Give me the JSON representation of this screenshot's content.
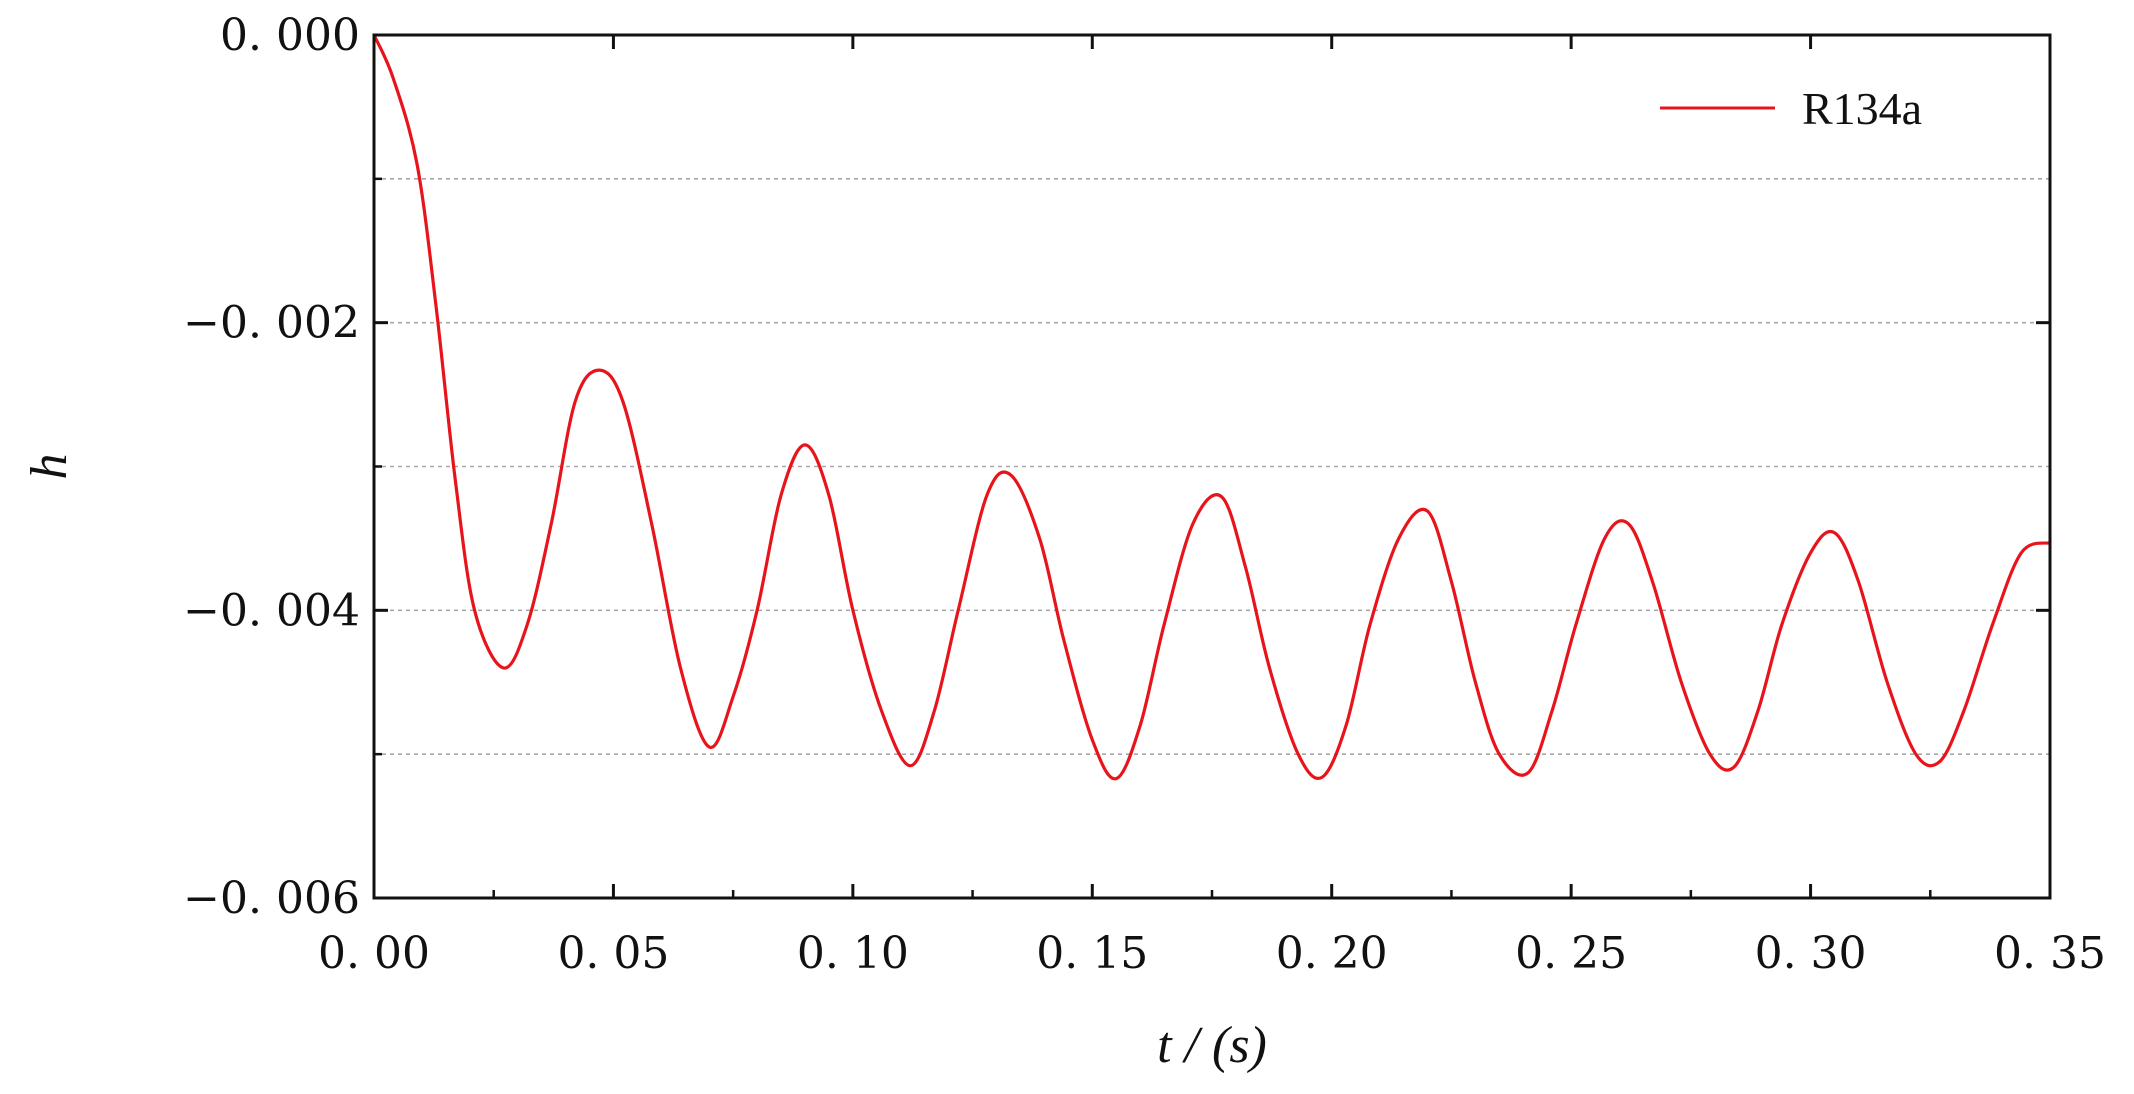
{
  "chart_data": {
    "type": "line",
    "xlabel": "t / (s)",
    "ylabel": "h",
    "xlim": [
      0,
      0.35
    ],
    "ylim": [
      -0.006,
      0.0
    ],
    "xticks": [
      0.0,
      0.05,
      0.1,
      0.15,
      0.2,
      0.25,
      0.3,
      0.35
    ],
    "xtick_labels": [
      "0. 00",
      "0. 05",
      "0. 10",
      "0. 15",
      "0. 20",
      "0. 25",
      "0. 30",
      "0. 35"
    ],
    "yticks": [
      0.0,
      -0.002,
      -0.004,
      -0.006
    ],
    "ytick_labels": [
      "0. 000",
      "−0. 002",
      "−0. 004",
      "−0. 006"
    ],
    "ygrid": [
      -0.001,
      -0.002,
      -0.003,
      -0.004,
      -0.005
    ],
    "grid": "horizontal dotted",
    "legend_position": "top-right",
    "series": [
      {
        "name": "R134a",
        "color": "#e8141c",
        "points": [
          [
            0.0,
            0.0
          ],
          [
            0.004,
            -0.0003
          ],
          [
            0.009,
            -0.0009
          ],
          [
            0.013,
            -0.0019
          ],
          [
            0.017,
            -0.0031
          ],
          [
            0.021,
            -0.004
          ],
          [
            0.027,
            -0.0044
          ],
          [
            0.032,
            -0.0041
          ],
          [
            0.037,
            -0.0034
          ],
          [
            0.042,
            -0.00255
          ],
          [
            0.047,
            -0.00233
          ],
          [
            0.052,
            -0.00255
          ],
          [
            0.058,
            -0.0034
          ],
          [
            0.064,
            -0.0044
          ],
          [
            0.07,
            -0.00495
          ],
          [
            0.075,
            -0.0046
          ],
          [
            0.08,
            -0.004
          ],
          [
            0.085,
            -0.0032
          ],
          [
            0.09,
            -0.00285
          ],
          [
            0.095,
            -0.0032
          ],
          [
            0.1,
            -0.004
          ],
          [
            0.106,
            -0.0047
          ],
          [
            0.112,
            -0.00508
          ],
          [
            0.117,
            -0.0047
          ],
          [
            0.122,
            -0.004
          ],
          [
            0.128,
            -0.0032
          ],
          [
            0.133,
            -0.00306
          ],
          [
            0.139,
            -0.0035
          ],
          [
            0.144,
            -0.0042
          ],
          [
            0.15,
            -0.0049
          ],
          [
            0.155,
            -0.00517
          ],
          [
            0.16,
            -0.0048
          ],
          [
            0.165,
            -0.0041
          ],
          [
            0.171,
            -0.0034
          ],
          [
            0.177,
            -0.00321
          ],
          [
            0.182,
            -0.0037
          ],
          [
            0.187,
            -0.0044
          ],
          [
            0.193,
            -0.005
          ],
          [
            0.198,
            -0.00516
          ],
          [
            0.203,
            -0.0048
          ],
          [
            0.208,
            -0.0041
          ],
          [
            0.214,
            -0.0035
          ],
          [
            0.22,
            -0.00331
          ],
          [
            0.225,
            -0.0038
          ],
          [
            0.23,
            -0.0045
          ],
          [
            0.235,
            -0.005
          ],
          [
            0.241,
            -0.00513
          ],
          [
            0.246,
            -0.0047
          ],
          [
            0.251,
            -0.0041
          ],
          [
            0.257,
            -0.0035
          ],
          [
            0.262,
            -0.0034
          ],
          [
            0.267,
            -0.0038
          ],
          [
            0.273,
            -0.0045
          ],
          [
            0.279,
            -0.005
          ],
          [
            0.284,
            -0.00509
          ],
          [
            0.289,
            -0.0047
          ],
          [
            0.294,
            -0.0041
          ],
          [
            0.3,
            -0.0036
          ],
          [
            0.305,
            -0.00346
          ],
          [
            0.31,
            -0.0038
          ],
          [
            0.316,
            -0.0045
          ],
          [
            0.322,
            -0.005
          ],
          [
            0.327,
            -0.00505
          ],
          [
            0.332,
            -0.0047
          ],
          [
            0.338,
            -0.0041
          ],
          [
            0.344,
            -0.0036
          ],
          [
            0.35,
            -0.00353
          ]
        ]
      }
    ]
  }
}
